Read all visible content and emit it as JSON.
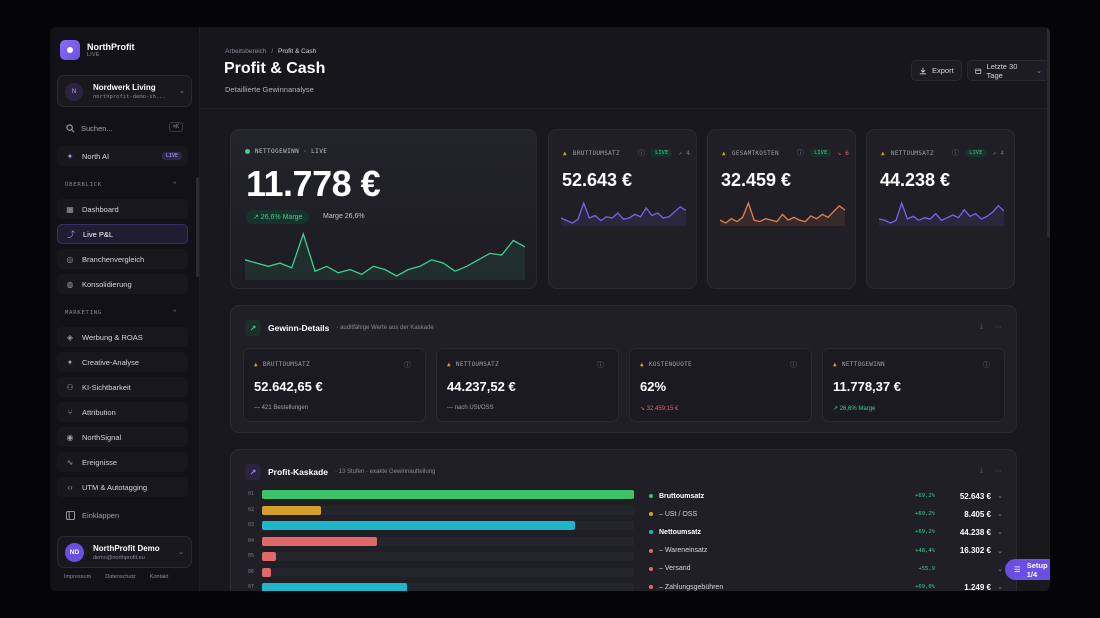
{
  "brand": {
    "name": "NorthProfit",
    "sub": "LIVE"
  },
  "workspace": {
    "initial": "N",
    "name": "Nordwerk Living",
    "sub": "northprofit-demo-sh..."
  },
  "search": {
    "placeholder": "Suchen...",
    "kbd": "⌘K"
  },
  "ai": {
    "label": "North AI",
    "badge": "LIVE"
  },
  "sections": {
    "overview": "ÜBERBLICK",
    "marketing": "MARKETING"
  },
  "nav_overview": [
    {
      "label": "Dashboard",
      "icon": "grid-icon"
    },
    {
      "label": "Live P&L",
      "icon": "trend-icon",
      "active": true
    },
    {
      "label": "Branchenvergleich",
      "icon": "target-icon"
    },
    {
      "label": "Konsolidierung",
      "icon": "globe-icon"
    }
  ],
  "nav_marketing": [
    {
      "label": "Werbung & ROAS",
      "icon": "megaphone-icon"
    },
    {
      "label": "Creative-Analyse",
      "icon": "sparkle-icon"
    },
    {
      "label": "KI-Sichtbarkeit",
      "icon": "bot-icon"
    },
    {
      "label": "Attribution",
      "icon": "branch-icon"
    },
    {
      "label": "NorthSignal",
      "icon": "signal-icon"
    },
    {
      "label": "Ereignisse",
      "icon": "pulse-icon"
    },
    {
      "label": "UTM & Autotagging",
      "icon": "code-icon"
    }
  ],
  "collapse_label": "Einklappen",
  "user": {
    "initials": "ND",
    "name": "NorthProfit Demo",
    "email": "demo@northprofit.eu"
  },
  "footer": {
    "impressum": "Impressum",
    "datenschutz": "Datenschutz",
    "kontakt": "Kontakt"
  },
  "header": {
    "crumb_root": "Arbeitsbereich",
    "crumb_sep": "/",
    "crumb_current": "Profit & Cash",
    "title": "Profit & Cash",
    "subtitle": "Detaillierte Gewinnanalyse",
    "export_label": "Export",
    "range_label": "Letzte 30 Tage"
  },
  "hero": {
    "tag": "NETTOGEWINN · LIVE",
    "value": "11.778 €",
    "pill": "↗ 26,6% Marge",
    "marge": "Marge 26,6%",
    "spark": [
      40,
      38,
      36,
      38,
      35,
      56,
      33,
      36,
      32,
      34,
      31,
      36,
      34,
      30,
      34,
      36,
      40,
      38,
      33,
      36,
      40,
      44,
      43,
      52,
      48
    ]
  },
  "kpis": [
    {
      "label": "BRUTTOUMSATZ",
      "live": "LIVE",
      "delta": "↗ 4",
      "value": "52.643 €",
      "color": "#7b61f0",
      "spark": [
        40,
        38,
        36,
        39,
        52,
        40,
        42,
        38,
        41,
        40,
        44,
        39,
        40,
        43,
        41,
        48,
        42,
        44,
        40,
        41,
        45,
        49,
        46
      ]
    },
    {
      "label": "GESAMTKOSTEN",
      "live": "LIVE",
      "delta": "↘ 6",
      "value": "32.459 €",
      "color": "#e0804f",
      "spark": [
        40,
        38,
        41,
        39,
        42,
        52,
        40,
        39,
        41,
        40,
        39,
        44,
        40,
        42,
        40,
        39,
        43,
        41,
        44,
        42,
        46,
        50,
        47
      ]
    },
    {
      "label": "NETTOUMSATZ",
      "live": "LIVE",
      "delta": "↗ 4",
      "value": "44.238 €",
      "color": "#7b61f0",
      "spark": [
        40,
        39,
        37,
        39,
        52,
        40,
        42,
        39,
        41,
        40,
        44,
        39,
        41,
        43,
        41,
        47,
        42,
        44,
        40,
        42,
        45,
        50,
        46
      ]
    }
  ],
  "details": {
    "title": "Gewinn-Details",
    "hint": "· audit­fähige Werte aus der Kaskade",
    "items": [
      {
        "label": "BRUTTOUMSATZ",
        "value": "52.642,65 €",
        "note": "— 421 Bestellungen",
        "note_color": "#a0a0ae"
      },
      {
        "label": "NETTOUMSATZ",
        "value": "44.237,52 €",
        "note": "— nach USt/OSS",
        "note_color": "#a0a0ae"
      },
      {
        "label": "KOSTENQUOTE",
        "value": "62%",
        "note": "↘ 32.459,15 €",
        "note_color": "#ef5f5f"
      },
      {
        "label": "NETTOGEWINN",
        "value": "11.778,37 €",
        "note": "↗ 26,6% Marge",
        "note_color": "#3ecf8e"
      }
    ]
  },
  "cascade": {
    "title": "Profit-Kaskade",
    "hint": "· 13 Stufen · exakte Gewinnaufteilung",
    "bars": [
      {
        "code": "01",
        "value": 52643,
        "color": "#3ec26a"
      },
      {
        "code": "02",
        "value": 8405,
        "color": "#d1a02c"
      },
      {
        "code": "03",
        "value": 44238,
        "color": "#1fb6c9"
      },
      {
        "code": "04",
        "value": 16302,
        "color": "#e06868"
      },
      {
        "code": "05",
        "value": 2000,
        "color": "#e06868"
      },
      {
        "code": "06",
        "value": 1249,
        "color": "#e06868"
      },
      {
        "code": "07",
        "value": 20500,
        "color": "#1fb6c9"
      }
    ],
    "max": 52643,
    "legend": [
      {
        "label": "Bruttoumsatz",
        "pct": "+69,2%",
        "amount": "52.643 €",
        "color": "#3ec26a",
        "bold": true
      },
      {
        "label": "– USt / OSS",
        "pct": "+69,2%",
        "amount": "8.405 €",
        "color": "#d1a02c",
        "bold": false
      },
      {
        "label": "Nettoumsatz",
        "pct": "+69,2%",
        "amount": "44.238 €",
        "color": "#1fb6c9",
        "bold": true
      },
      {
        "label": "– Wareneinsatz",
        "pct": "+48,4%",
        "amount": "16.302 €",
        "color": "#e06868",
        "bold": false
      },
      {
        "label": "– Versand",
        "pct": "+55,9",
        "amount": "",
        "color": "#e06868",
        "bold": false
      },
      {
        "label": "– Zahlungsgebühren",
        "pct": "+69,0%",
        "amount": "1.249 €",
        "color": "#e06868",
        "bold": false
      }
    ]
  },
  "setup": {
    "label": "Setup 1/4",
    "count": "1"
  }
}
